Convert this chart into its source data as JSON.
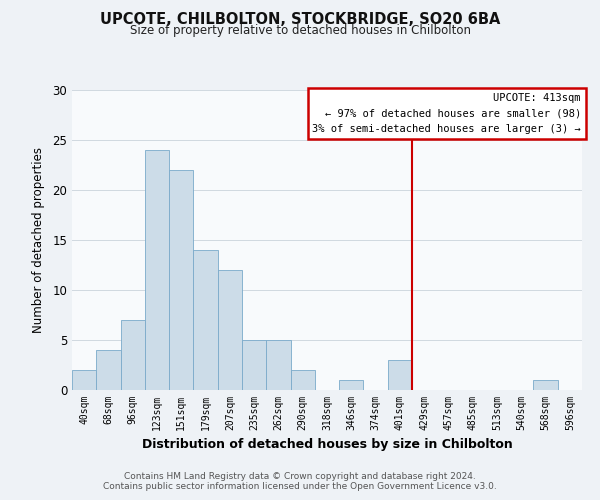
{
  "title": "UPCOTE, CHILBOLTON, STOCKBRIDGE, SO20 6BA",
  "subtitle": "Size of property relative to detached houses in Chilbolton",
  "xlabel": "Distribution of detached houses by size in Chilbolton",
  "ylabel": "Number of detached properties",
  "bin_labels": [
    "40sqm",
    "68sqm",
    "96sqm",
    "123sqm",
    "151sqm",
    "179sqm",
    "207sqm",
    "235sqm",
    "262sqm",
    "290sqm",
    "318sqm",
    "346sqm",
    "374sqm",
    "401sqm",
    "429sqm",
    "457sqm",
    "485sqm",
    "513sqm",
    "540sqm",
    "568sqm",
    "596sqm"
  ],
  "bin_values": [
    2,
    4,
    7,
    24,
    22,
    14,
    12,
    5,
    5,
    2,
    0,
    1,
    0,
    3,
    0,
    0,
    0,
    0,
    0,
    1,
    0
  ],
  "bar_color": "#ccdce8",
  "bar_edge_color": "#7aaaca",
  "ylim": [
    0,
    30
  ],
  "yticks": [
    0,
    5,
    10,
    15,
    20,
    25,
    30
  ],
  "vline_x": 13.5,
  "vline_color": "#cc0000",
  "annotation_title": "UPCOTE: 413sqm",
  "annotation_line1": "← 97% of detached houses are smaller (98)",
  "annotation_line2": "3% of semi-detached houses are larger (3) →",
  "annotation_box_facecolor": "#ffffff",
  "annotation_box_edgecolor": "#cc0000",
  "footer1": "Contains HM Land Registry data © Crown copyright and database right 2024.",
  "footer2": "Contains public sector information licensed under the Open Government Licence v3.0.",
  "fig_facecolor": "#eef2f6",
  "plot_facecolor": "#f8fafc"
}
